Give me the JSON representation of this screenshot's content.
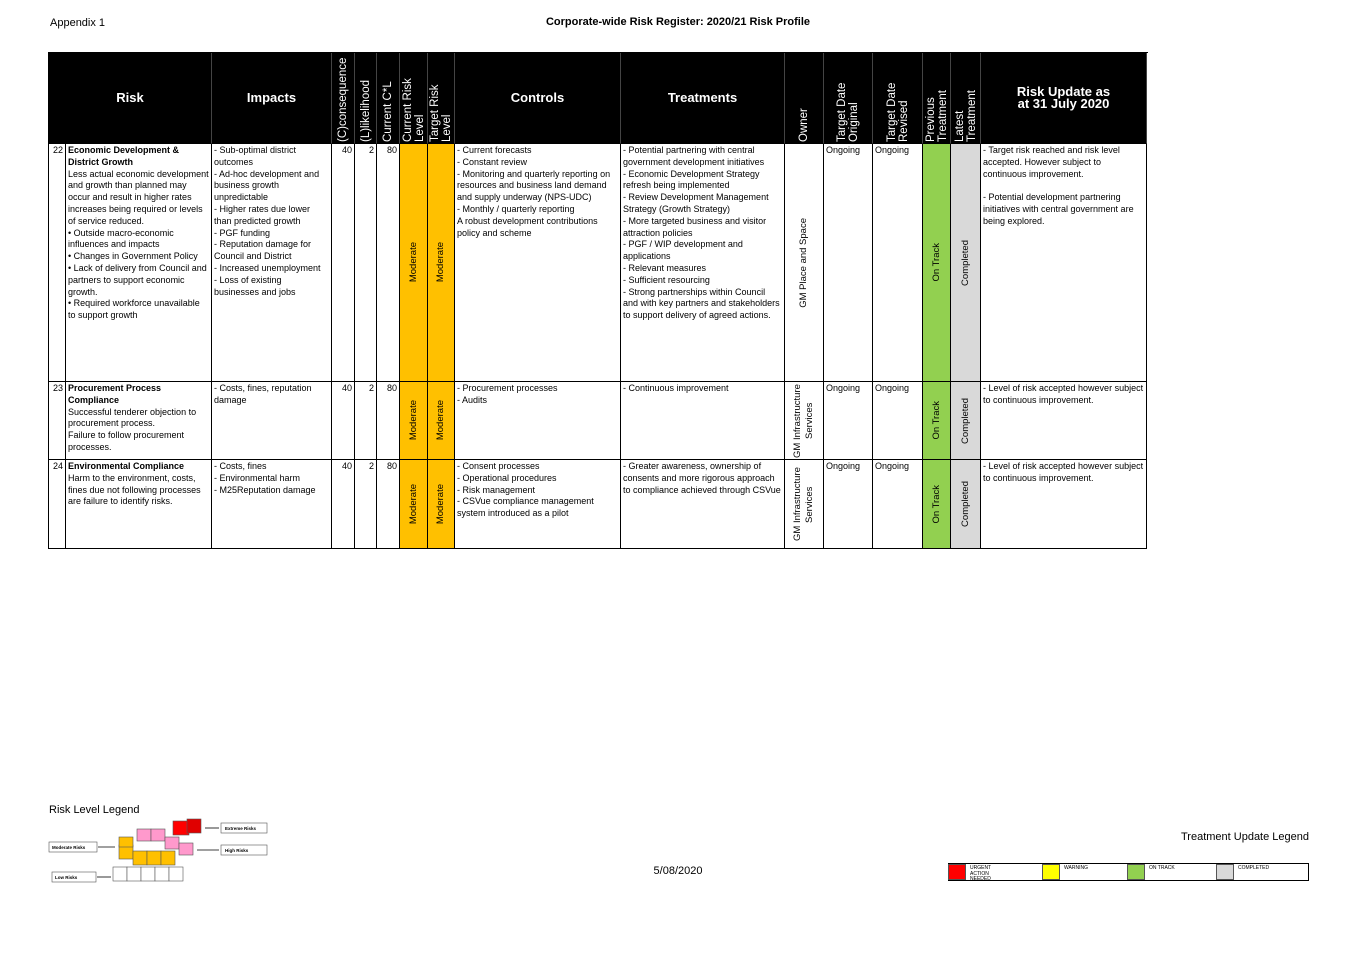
{
  "header": {
    "appendix": "Appendix 1",
    "title": "Corporate-wide Risk Register: 2020/21 Risk Profile"
  },
  "table": {
    "headers": [
      "Risk",
      "Impacts",
      "(C)consequence",
      "(L)likelihood",
      "Current C*L",
      "Current Risk Level",
      "Target Risk Level",
      "Controls",
      "Treatments",
      "Owner",
      "Target Date Original",
      "Target Date Revised",
      "Previous Treatment",
      "Latest Treatment",
      "Risk Update as at 31 July 2020"
    ],
    "rows": [
      {
        "id": 22,
        "risk_title": "Economic Development & District Growth",
        "risk_text": [
          "Less actual economic development and growth than planned may occur and result in higher rates increases being required or levels of service reduced.",
          "• Outside macro-economic influences and impacts",
          "• Changes in Government Policy",
          "• Lack of delivery from Council and partners to support economic growth.",
          "• Required workforce unavailable to support growth"
        ],
        "impacts": [
          "- Sub-optimal district outcomes",
          "- Ad-hoc development and business growth unpredictable",
          "- Higher rates due lower than predicted growth",
          "- PGF funding",
          "- Reputation damage for Council and District",
          "- Increased unemployment",
          "- Loss of existing businesses and jobs"
        ],
        "consequence": 40,
        "likelihood": 2,
        "current_cl": 80,
        "current_level": "Moderate",
        "target_level": "Moderate",
        "controls": [
          "- Current forecasts",
          "- Constant review",
          "- Monitoring and quarterly reporting on resources and business land demand and supply underway (NPS-UDC)",
          "- Monthly / quarterly reporting",
          "A robust development contributions policy and scheme"
        ],
        "treatments": [
          "- Potential partnering with central government development initiatives",
          "- Economic Development Strategy refresh being implemented",
          "- Review Development Management Strategy (Growth Strategy)",
          "- More targeted business and visitor attraction policies",
          "- PGF / WIP development and applications",
          "- Relevant measures",
          "- Sufficient resourcing",
          "- Strong partnerships within Council and with key partners and stakeholders to support delivery of agreed actions."
        ],
        "owner": "GM Place and Space",
        "target_date_original": "Ongoing",
        "target_date_revised": "Ongoing",
        "previous_treatment": "On Track",
        "latest_treatment": "Completed",
        "update": [
          "- Target risk reached and risk level accepted. However subject to continuous improvement.",
          "- Potential development partnering initiatives with central government are being explored."
        ]
      },
      {
        "id": 23,
        "risk_title": "Procurement Process Compliance",
        "risk_text": [
          "Successful tenderer objection to procurement process.",
          "Failure to follow procurement processes."
        ],
        "impacts": [
          "- Costs, fines, reputation damage"
        ],
        "consequence": 40,
        "likelihood": 2,
        "current_cl": 80,
        "current_level": "Moderate",
        "target_level": "Moderate",
        "controls": [
          "- Procurement processes",
          "- Audits"
        ],
        "treatments": [
          "- Continuous improvement"
        ],
        "owner": "GM Infrastructure Services",
        "target_date_original": "Ongoing",
        "target_date_revised": "Ongoing",
        "previous_treatment": "On Track",
        "latest_treatment": "Completed",
        "update": [
          "- Level of risk accepted however subject to continuous improvement."
        ]
      },
      {
        "id": 24,
        "risk_title": "Environmental Compliance",
        "risk_text": [
          "Harm to the environment, costs, fines due not following processes are failure to identify risks."
        ],
        "impacts": [
          "- Costs, fines",
          "- Environmental harm",
          "- M25Reputation damage"
        ],
        "consequence": 40,
        "likelihood": 2,
        "current_cl": 80,
        "current_level": "Moderate",
        "target_level": "Moderate",
        "controls": [
          "- Consent processes",
          "- Operational procedures",
          "- Risk management",
          "- CSVue compliance management system introduced as a pilot"
        ],
        "treatments": [
          "- Greater awareness, ownership of consents and more rigorous approach to compliance achieved through CSVue"
        ],
        "owner": "GM Infrastructure Services",
        "target_date_original": "Ongoing",
        "target_date_revised": "Ongoing",
        "previous_treatment": "On Track",
        "latest_treatment": "Completed",
        "update": [
          "- Level of risk accepted however subject to continuous improvement."
        ]
      }
    ]
  },
  "risk_legend": {
    "title": "Risk Level Legend",
    "labels": [
      "Extreme Risks",
      "High Risks",
      "Moderate Risks",
      "Low Risks"
    ]
  },
  "footer": {
    "date": "5/08/2020"
  },
  "treatment_legend": {
    "title": "Treatment Update Legend",
    "items": [
      {
        "label": "URGENT ACTION NEEDED",
        "color": "#ff0000"
      },
      {
        "label": "WARNING",
        "color": "#ffff00"
      },
      {
        "label": "ON TRACK",
        "color": "#92d050"
      },
      {
        "label": "COMPLETED",
        "color": "#d9d9d9"
      }
    ]
  }
}
